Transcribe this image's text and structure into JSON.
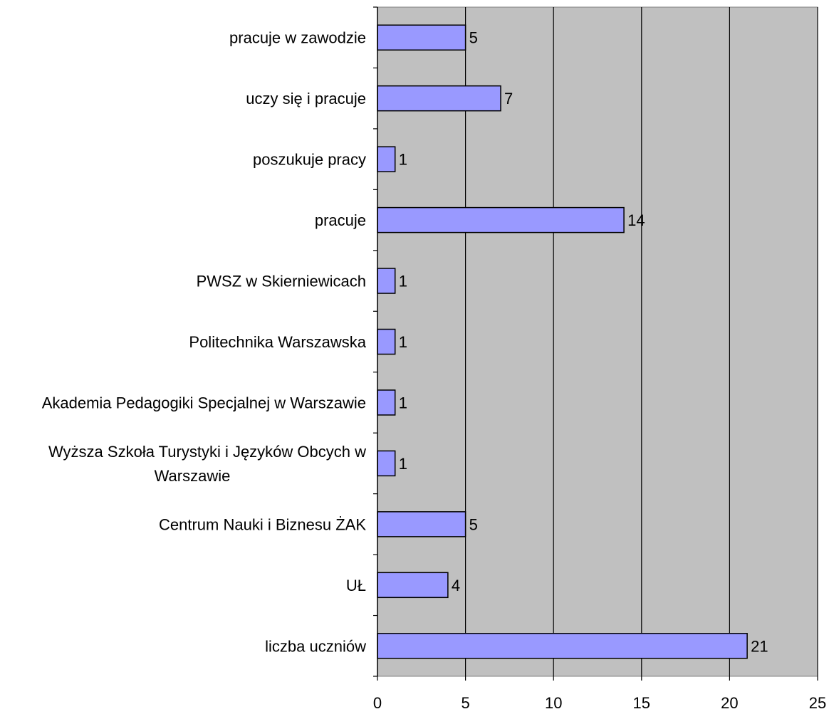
{
  "chart_data": {
    "type": "bar",
    "orientation": "horizontal",
    "title": "",
    "xlabel": "",
    "ylabel": "",
    "categories": [
      "pracuje w zawodzie",
      "uczy się i pracuje",
      "poszukuje pracy",
      "pracuje",
      "PWSZ w Skierniewicach",
      "Politechnika Warszawska",
      "Akademia Pedagogiki Specjalnej w Warszawie",
      "Wyższa Szkoła Turystyki i Języków Obcych w Warszawie",
      "Centrum Nauki i Biznesu ŻAK",
      "UŁ",
      "liczba uczniów"
    ],
    "category_lines": [
      [
        "pracuje w zawodzie"
      ],
      [
        "uczy się i pracuje"
      ],
      [
        "poszukuje pracy"
      ],
      [
        "pracuje"
      ],
      [
        "PWSZ w Skierniewicach"
      ],
      [
        "Politechnika Warszawska"
      ],
      [
        "Akademia Pedagogiki Specjalnej w Warszawie"
      ],
      [
        "Wyższa Szkoła Turystyki i Języków Obcych w",
        "Warszawie"
      ],
      [
        "Centrum Nauki i Biznesu ŻAK"
      ],
      [
        "UŁ"
      ],
      [
        "liczba uczniów"
      ]
    ],
    "values": [
      5,
      7,
      1,
      14,
      1,
      1,
      1,
      1,
      5,
      4,
      21
    ],
    "xlim": [
      0,
      25
    ],
    "xticks": [
      0,
      5,
      10,
      15,
      20,
      25
    ],
    "grid": true,
    "legend": "none",
    "colors": {
      "bar_fill": "#9999ff",
      "bar_stroke": "#000000",
      "plot_background": "#c0c0c0",
      "grid": "#000000"
    }
  }
}
